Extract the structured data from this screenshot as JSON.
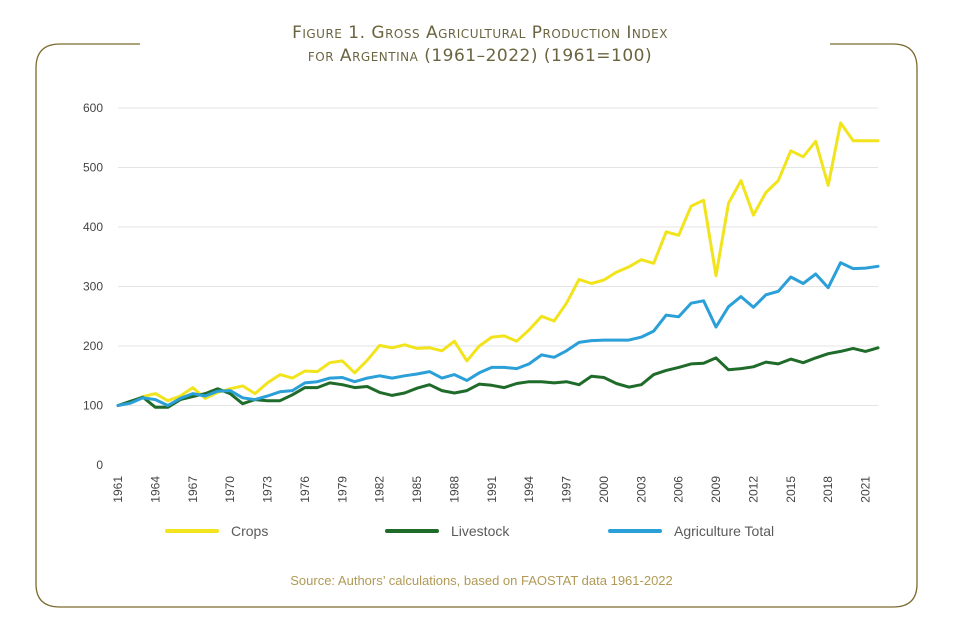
{
  "title_line1": "Figure 1. Gross Agricultural Production Index",
  "title_line2": "for Argentina (1961–2022) (1961=100)",
  "source": "Source: Authors’ calculations, based on FAOSTAT data 1961-2022",
  "chart_data": {
    "type": "line",
    "title": "Figure 1. Gross Agricultural Production Index for Argentina (1961–2022) (1961=100)",
    "xlabel": "",
    "ylabel": "",
    "ylim": [
      0,
      600
    ],
    "yticks": [
      0,
      100,
      200,
      300,
      400,
      500,
      600
    ],
    "grid": true,
    "legend_position": "bottom",
    "x": [
      1961,
      1962,
      1963,
      1964,
      1965,
      1966,
      1967,
      1968,
      1969,
      1970,
      1971,
      1972,
      1973,
      1974,
      1975,
      1976,
      1977,
      1978,
      1979,
      1980,
      1981,
      1982,
      1983,
      1984,
      1985,
      1986,
      1987,
      1988,
      1989,
      1990,
      1991,
      1992,
      1993,
      1994,
      1995,
      1996,
      1997,
      1998,
      1999,
      2000,
      2001,
      2002,
      2003,
      2004,
      2005,
      2006,
      2007,
      2008,
      2009,
      2010,
      2011,
      2012,
      2013,
      2014,
      2015,
      2016,
      2017,
      2018,
      2019,
      2020,
      2021,
      2022
    ],
    "x_tick_labels": [
      "1961",
      "1964",
      "1967",
      "1970",
      "1973",
      "1976",
      "1979",
      "1982",
      "1985",
      "1988",
      "1991",
      "1994",
      "1997",
      "2000",
      "2003",
      "2006",
      "2009",
      "2012",
      "2015",
      "2018",
      "2021"
    ],
    "series": [
      {
        "name": "Crops",
        "color": "#f2e41c",
        "values": [
          100,
          105,
          115,
          120,
          108,
          116,
          130,
          112,
          122,
          128,
          133,
          120,
          138,
          152,
          146,
          158,
          157,
          172,
          175,
          155,
          176,
          201,
          197,
          202,
          196,
          197,
          192,
          208,
          175,
          200,
          215,
          217,
          208,
          227,
          250,
          242,
          272,
          312,
          305,
          311,
          324,
          333,
          345,
          339,
          392,
          386,
          435,
          445,
          318,
          440,
          478,
          420,
          458,
          478,
          528,
          518,
          544,
          470,
          575,
          545,
          545,
          545
        ]
      },
      {
        "name": "Livestock",
        "color": "#1f6b2a",
        "values": [
          100,
          107,
          114,
          97,
          97,
          110,
          115,
          120,
          128,
          120,
          103,
          110,
          108,
          108,
          118,
          130,
          130,
          138,
          135,
          130,
          132,
          122,
          117,
          121,
          129,
          135,
          125,
          121,
          125,
          136,
          134,
          130,
          137,
          140,
          140,
          138,
          140,
          135,
          149,
          147,
          137,
          131,
          135,
          152,
          159,
          164,
          170,
          171,
          180,
          160,
          162,
          165,
          173,
          170,
          178,
          172,
          180,
          187,
          191,
          196,
          191,
          197
        ]
      },
      {
        "name": "Agriculture Total",
        "color": "#2a9fd8",
        "values": [
          100,
          104,
          113,
          110,
          100,
          112,
          120,
          116,
          124,
          125,
          113,
          110,
          116,
          123,
          125,
          138,
          140,
          146,
          147,
          140,
          146,
          150,
          146,
          150,
          153,
          157,
          146,
          152,
          142,
          155,
          164,
          164,
          162,
          170,
          185,
          181,
          192,
          206,
          209,
          210,
          210,
          210,
          215,
          225,
          252,
          249,
          272,
          276,
          232,
          266,
          283,
          265,
          286,
          292,
          316,
          305,
          321,
          298,
          340,
          330,
          331,
          334
        ]
      }
    ]
  }
}
